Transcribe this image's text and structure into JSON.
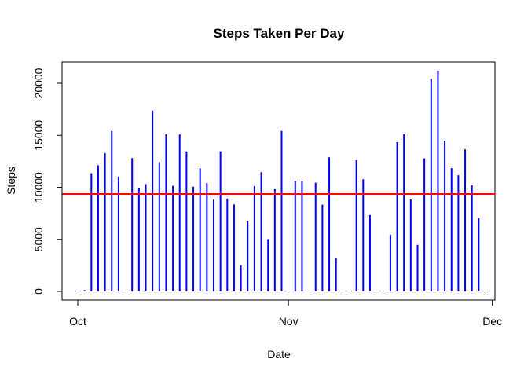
{
  "chart_data": {
    "type": "bar",
    "title": "Steps Taken Per Day",
    "xlabel": "Date",
    "ylabel": "Steps",
    "x": [
      "2012-10-01",
      "2012-10-02",
      "2012-10-03",
      "2012-10-04",
      "2012-10-05",
      "2012-10-06",
      "2012-10-07",
      "2012-10-08",
      "2012-10-09",
      "2012-10-10",
      "2012-10-11",
      "2012-10-12",
      "2012-10-13",
      "2012-10-14",
      "2012-10-15",
      "2012-10-16",
      "2012-10-17",
      "2012-10-18",
      "2012-10-19",
      "2012-10-20",
      "2012-10-21",
      "2012-10-22",
      "2012-10-23",
      "2012-10-24",
      "2012-10-25",
      "2012-10-26",
      "2012-10-27",
      "2012-10-28",
      "2012-10-29",
      "2012-10-30",
      "2012-10-31",
      "2012-11-01",
      "2012-11-02",
      "2012-11-03",
      "2012-11-04",
      "2012-11-05",
      "2012-11-06",
      "2012-11-07",
      "2012-11-08",
      "2012-11-09",
      "2012-11-10",
      "2012-11-11",
      "2012-11-12",
      "2012-11-13",
      "2012-11-14",
      "2012-11-15",
      "2012-11-16",
      "2012-11-17",
      "2012-11-18",
      "2012-11-19",
      "2012-11-20",
      "2012-11-21",
      "2012-11-22",
      "2012-11-23",
      "2012-11-24",
      "2012-11-25",
      "2012-11-26",
      "2012-11-27",
      "2012-11-28",
      "2012-11-29",
      "2012-11-30"
    ],
    "values": [
      0,
      126,
      11352,
      12116,
      13294,
      15420,
      11015,
      0,
      12811,
      9900,
      10304,
      17382,
      12426,
      15098,
      10139,
      15084,
      13452,
      10056,
      11829,
      10395,
      8821,
      13460,
      8918,
      8355,
      2492,
      6778,
      10119,
      11458,
      5018,
      9819,
      15414,
      0,
      10600,
      10571,
      0,
      10439,
      8334,
      12883,
      3219,
      0,
      0,
      12608,
      10765,
      7336,
      0,
      41,
      5441,
      14339,
      15110,
      8841,
      4472,
      12787,
      20427,
      21194,
      14478,
      11834,
      11162,
      13646,
      10183,
      7047,
      0
    ],
    "mean_line": 9354.23,
    "xticks": [
      {
        "date": "2012-10-01",
        "label": "Oct"
      },
      {
        "date": "2012-11-01",
        "label": "Nov"
      },
      {
        "date": "2012-12-01",
        "label": "Dec"
      }
    ],
    "yticks": [
      0,
      5000,
      10000,
      15000,
      20000
    ],
    "ylim": [
      0,
      21194
    ],
    "grid": false,
    "colors": {
      "bars": "#0000ff",
      "mean_line": "#ff0000"
    }
  }
}
